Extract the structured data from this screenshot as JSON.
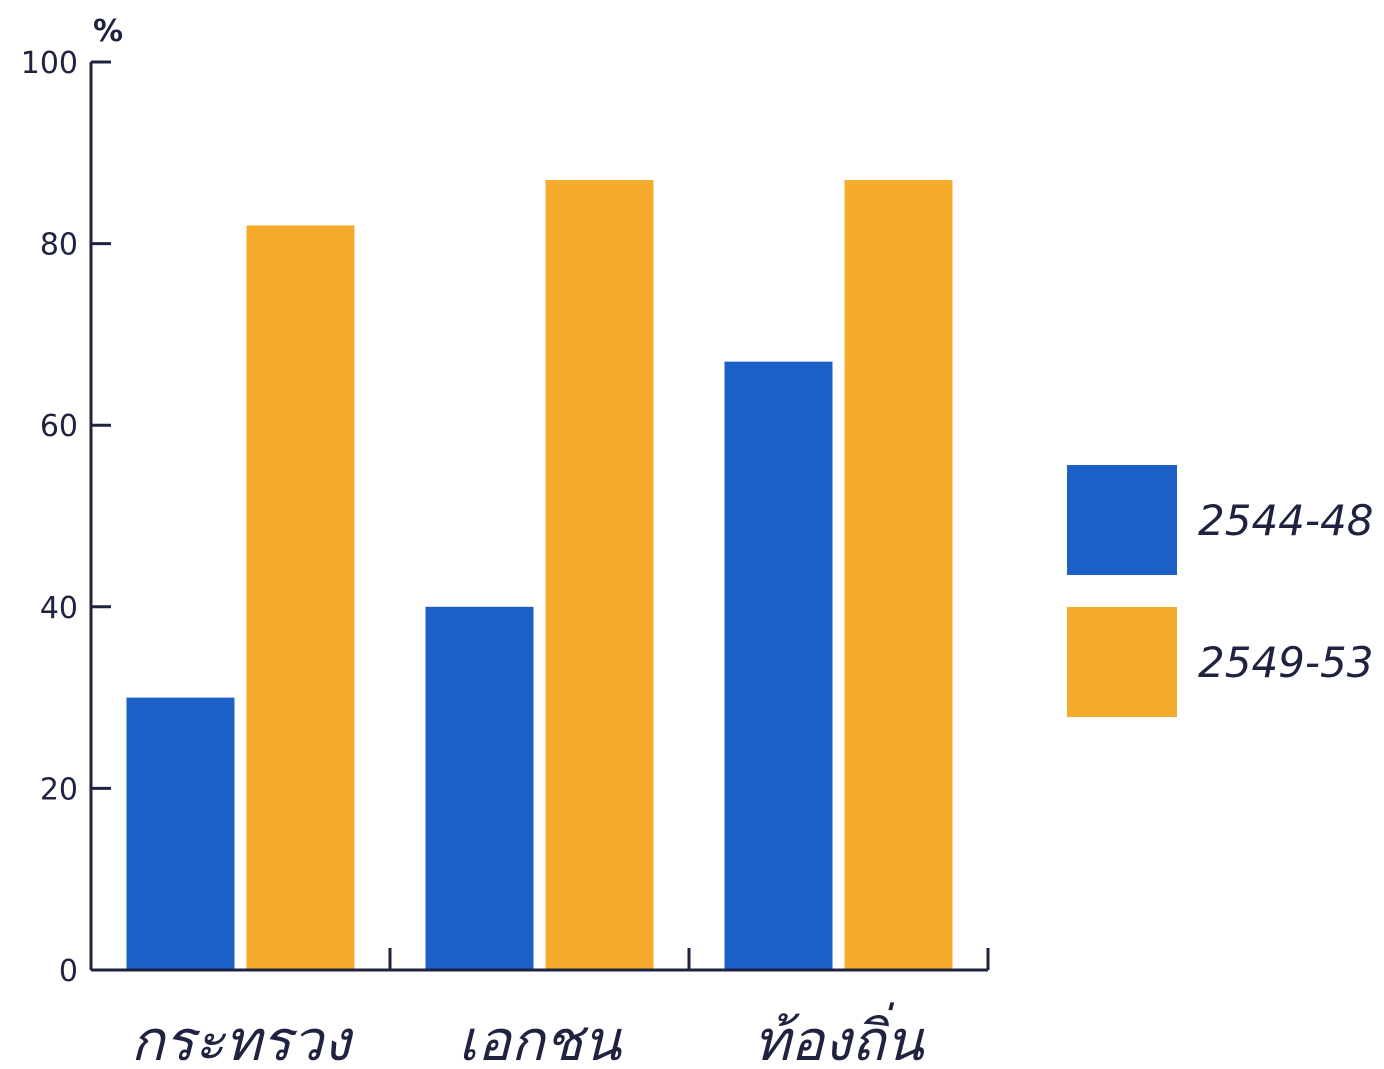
{
  "chart_data": {
    "type": "bar",
    "ylabel": "%",
    "ylim": [
      0,
      100
    ],
    "yticks": [
      0,
      20,
      40,
      60,
      80,
      100
    ],
    "categories": [
      "กระทรวง",
      "เอกชน",
      "ท้องถิ่น"
    ],
    "series": [
      {
        "name": "2544-48",
        "color": "#1c5fc6",
        "values": [
          30,
          40,
          67
        ]
      },
      {
        "name": "2549-53",
        "color": "#f4ab2b",
        "values": [
          82,
          87,
          87
        ]
      }
    ],
    "grid": false,
    "legend": "right"
  }
}
